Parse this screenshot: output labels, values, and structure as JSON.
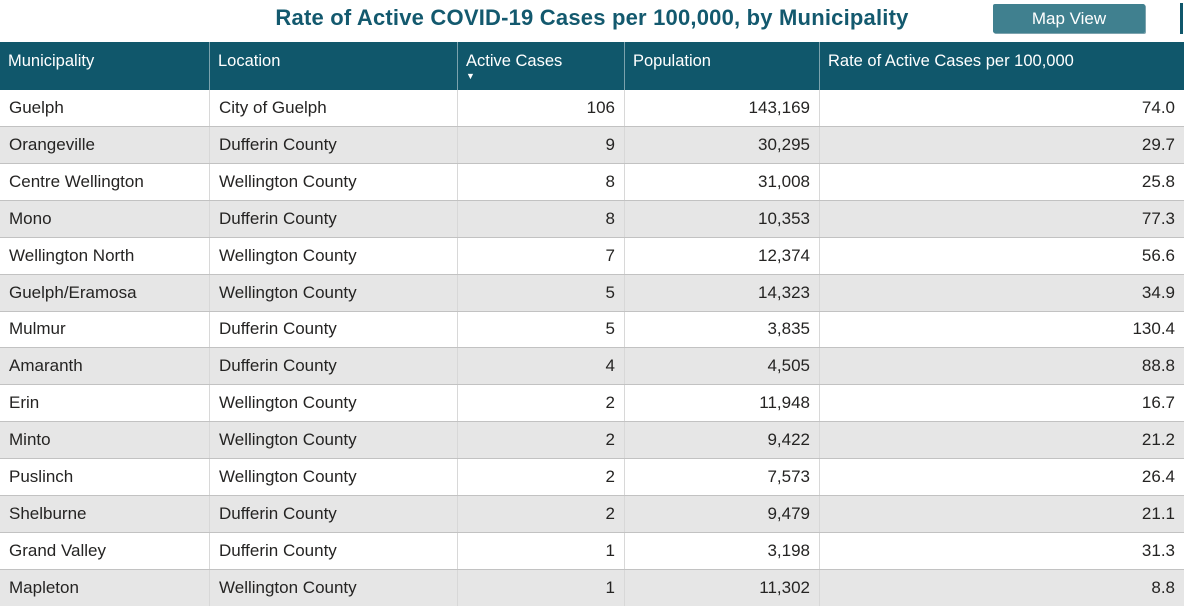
{
  "header": {
    "title": "Rate of Active COVID-19 Cases per 100,000, by Municipality",
    "map_view_label": "Map View"
  },
  "icons": {
    "sort_descending": "▼"
  },
  "colors": {
    "header_teal": "#10576B",
    "title_text": "#13596E",
    "button_teal": "#40808F",
    "row_alt_gray": "#E6E6E6",
    "body_text": "#252423"
  },
  "table": {
    "columns": [
      {
        "id": "municipality",
        "label": "Municipality",
        "align": "left",
        "sorted": null
      },
      {
        "id": "location",
        "label": "Location",
        "align": "left",
        "sorted": null
      },
      {
        "id": "active-cases",
        "label": "Active Cases",
        "align": "right",
        "sorted": "descending"
      },
      {
        "id": "population",
        "label": "Population",
        "align": "right",
        "sorted": null
      },
      {
        "id": "rate",
        "label": "Rate of Active Cases per 100,000",
        "align": "right",
        "sorted": null
      }
    ],
    "rows": [
      [
        "Guelph",
        "City of Guelph",
        "106",
        "143,169",
        "74.0"
      ],
      [
        "Orangeville",
        "Dufferin County",
        "9",
        "30,295",
        "29.7"
      ],
      [
        "Centre Wellington",
        "Wellington County",
        "8",
        "31,008",
        "25.8"
      ],
      [
        "Mono",
        "Dufferin County",
        "8",
        "10,353",
        "77.3"
      ],
      [
        "Wellington North",
        "Wellington County",
        "7",
        "12,374",
        "56.6"
      ],
      [
        "Guelph/Eramosa",
        "Wellington County",
        "5",
        "14,323",
        "34.9"
      ],
      [
        "Mulmur",
        "Dufferin County",
        "5",
        "3,835",
        "130.4"
      ],
      [
        "Amaranth",
        "Dufferin County",
        "4",
        "4,505",
        "88.8"
      ],
      [
        "Erin",
        "Wellington County",
        "2",
        "11,948",
        "16.7"
      ],
      [
        "Minto",
        "Wellington County",
        "2",
        "9,422",
        "21.2"
      ],
      [
        "Puslinch",
        "Wellington County",
        "2",
        "7,573",
        "26.4"
      ],
      [
        "Shelburne",
        "Dufferin County",
        "2",
        "9,479",
        "21.1"
      ],
      [
        "Grand Valley",
        "Dufferin County",
        "1",
        "3,198",
        "31.3"
      ],
      [
        "Mapleton",
        "Wellington County",
        "1",
        "11,302",
        "8.8"
      ]
    ]
  }
}
